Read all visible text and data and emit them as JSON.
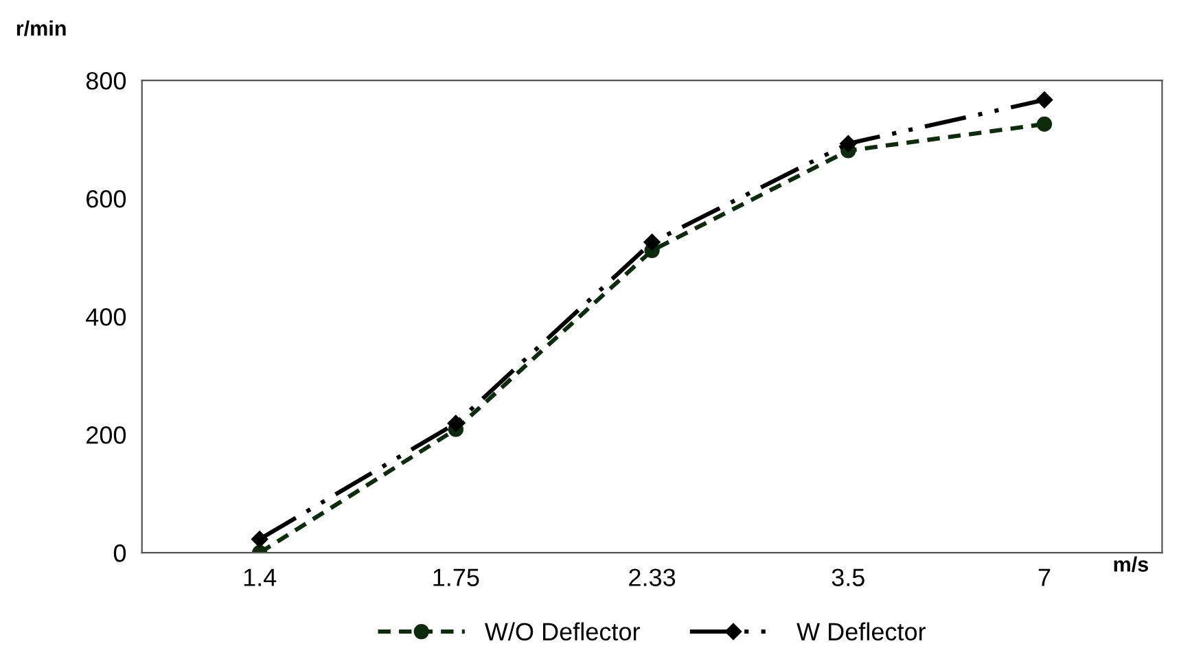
{
  "chart_data": {
    "type": "line",
    "xlabel": "m/s",
    "ylabel": "r/min",
    "categories": [
      "1.4",
      "1.75",
      "2.33",
      "3.5",
      "7"
    ],
    "series": [
      {
        "name": "W/O Deflector",
        "color": "#0d2b0d",
        "marker": "circle",
        "line_style": "dotted",
        "values": [
          0,
          209,
          512,
          681,
          726
        ]
      },
      {
        "name": "W Deflector",
        "color": "#000000",
        "marker": "diamond",
        "line_style": "dashed",
        "values": [
          23,
          219,
          526,
          693,
          767
        ]
      }
    ],
    "ylim": [
      0,
      800
    ],
    "yticks": [
      0,
      200,
      400,
      600,
      800
    ],
    "grid": false,
    "legend": "bottom"
  }
}
